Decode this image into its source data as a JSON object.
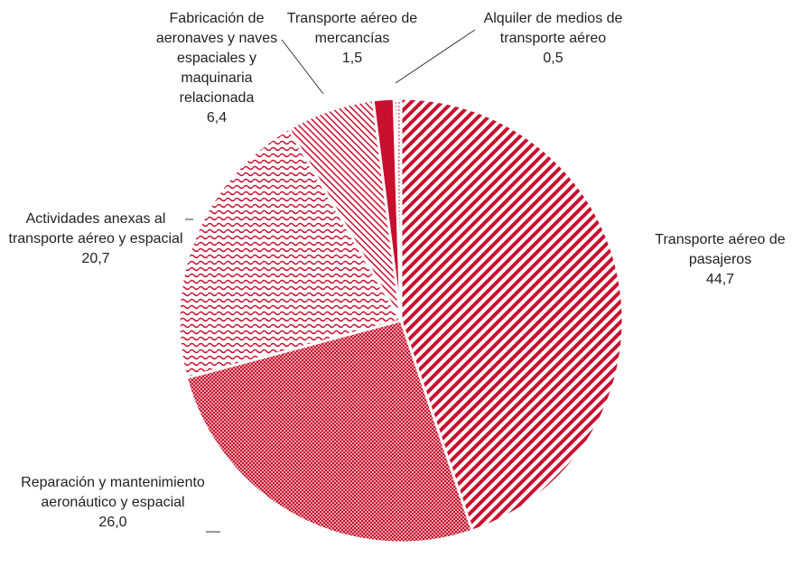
{
  "chart_data": {
    "type": "pie",
    "categories": [
      "Transporte aéreo de pasajeros",
      "Reparación y mantenimiento aeronáutico y espacial",
      "Actividades anexas al transporte aéreo y espacial",
      "Fabricación de aeronaves y naves espaciales y maquinaria relacionada",
      "Transporte aéreo de mercancías",
      "Alquiler de medios de transporte aéreo"
    ],
    "values": [
      44.7,
      26.0,
      20.7,
      6.4,
      1.5,
      0.5
    ],
    "value_labels": [
      "44,7",
      "26,0",
      "20,7",
      "6,4",
      "1,5",
      "0,5"
    ],
    "colors": [
      "#c8102e",
      "#c8102e",
      "#c8102e",
      "#c8102e",
      "#c8102e",
      "#c8102e"
    ]
  }
}
